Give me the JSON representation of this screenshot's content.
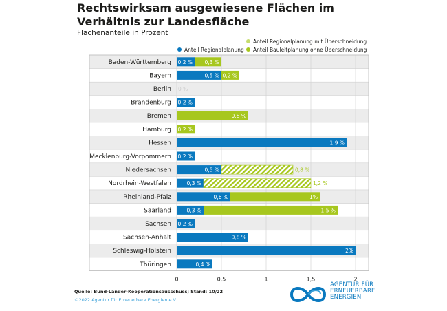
{
  "title": "Rechtswirksam ausgewiesene Flächen im Verhältnis zur Landesfläche",
  "subtitle": "Flächenanteile in Prozent",
  "legend": {
    "regional": "Anteil Regionalplanung",
    "regional_overlap": "Anteil Regionalplanung mit Überschneidung",
    "bauleit": "Anteil Bauleitplanung ohne Überschneidung"
  },
  "colors": {
    "blue": "#0a79bf",
    "green": "#a7c71e",
    "zero": "#cccccc"
  },
  "source": "Quelle: Bund-Länder-Kooperationsausschuss; Stand: 10/22",
  "copyright": "©2022 Agentur für Erneuerbare Energien e.V.",
  "logo": {
    "line1": "AGENTUR FÜR",
    "line2": "ERNEUERBARE",
    "line3": "ENERGIEN"
  },
  "chart_data": {
    "type": "bar",
    "orientation": "horizontal",
    "stacked": true,
    "categories": [
      "Baden-Württemberg",
      "Bayern",
      "Berlin",
      "Brandenburg",
      "Bremen",
      "Hamburg",
      "Hessen",
      "Mecklenburg-Vorpommern",
      "Niedersachsen",
      "Nordrhein-Westfalen",
      "Rheinland-Pfalz",
      "Saarland",
      "Sachsen",
      "Sachsen-Anhalt",
      "Schleswig-Holstein",
      "Thüringen"
    ],
    "segments": [
      [
        {
          "series": "regional",
          "value": 0.2,
          "label": "0,2 %"
        },
        {
          "series": "bauleit",
          "value": 0.3,
          "label": "0,3 %"
        }
      ],
      [
        {
          "series": "regional",
          "value": 0.5,
          "label": "0,5 %"
        },
        {
          "series": "bauleit",
          "value": 0.2,
          "label": "0,2 %"
        }
      ],
      [
        {
          "series": "zero",
          "value": 0,
          "label": "0 %"
        }
      ],
      [
        {
          "series": "regional",
          "value": 0.2,
          "label": "0,2 %"
        }
      ],
      [
        {
          "series": "bauleit",
          "value": 0.8,
          "label": "0,8 %"
        }
      ],
      [
        {
          "series": "bauleit",
          "value": 0.2,
          "label": "0,2 %"
        }
      ],
      [
        {
          "series": "regional",
          "value": 1.9,
          "label": "1,9 %"
        }
      ],
      [
        {
          "series": "regional",
          "value": 0.2,
          "label": "0,2 %"
        }
      ],
      [
        {
          "series": "regional",
          "value": 0.5,
          "label": "0,5 %"
        },
        {
          "series": "regional_overlap",
          "value": 0.8,
          "label": "0,8 %"
        }
      ],
      [
        {
          "series": "regional",
          "value": 0.3,
          "label": "0,3 %"
        },
        {
          "series": "regional_overlap",
          "value": 1.2,
          "label": "1,2 %"
        }
      ],
      [
        {
          "series": "regional",
          "value": 0.6,
          "label": "0,6 %"
        },
        {
          "series": "bauleit",
          "value": 1.0,
          "label": "1%"
        }
      ],
      [
        {
          "series": "regional",
          "value": 0.3,
          "label": "0,3 %"
        },
        {
          "series": "bauleit",
          "value": 1.5,
          "label": "1,5 %"
        }
      ],
      [
        {
          "series": "regional",
          "value": 0.2,
          "label": "0,2 %"
        }
      ],
      [
        {
          "series": "regional",
          "value": 0.8,
          "label": "0,8 %"
        }
      ],
      [
        {
          "series": "regional",
          "value": 2.0,
          "label": "2%"
        }
      ],
      [
        {
          "series": "regional",
          "value": 0.4,
          "label": "0,4 %"
        }
      ]
    ],
    "xlim": [
      0,
      2
    ],
    "xticks": [
      0,
      0.5,
      1,
      1.5,
      2
    ],
    "xtick_labels": [
      "0",
      "0,5",
      "1",
      "1,5",
      "2"
    ],
    "grid": true
  }
}
